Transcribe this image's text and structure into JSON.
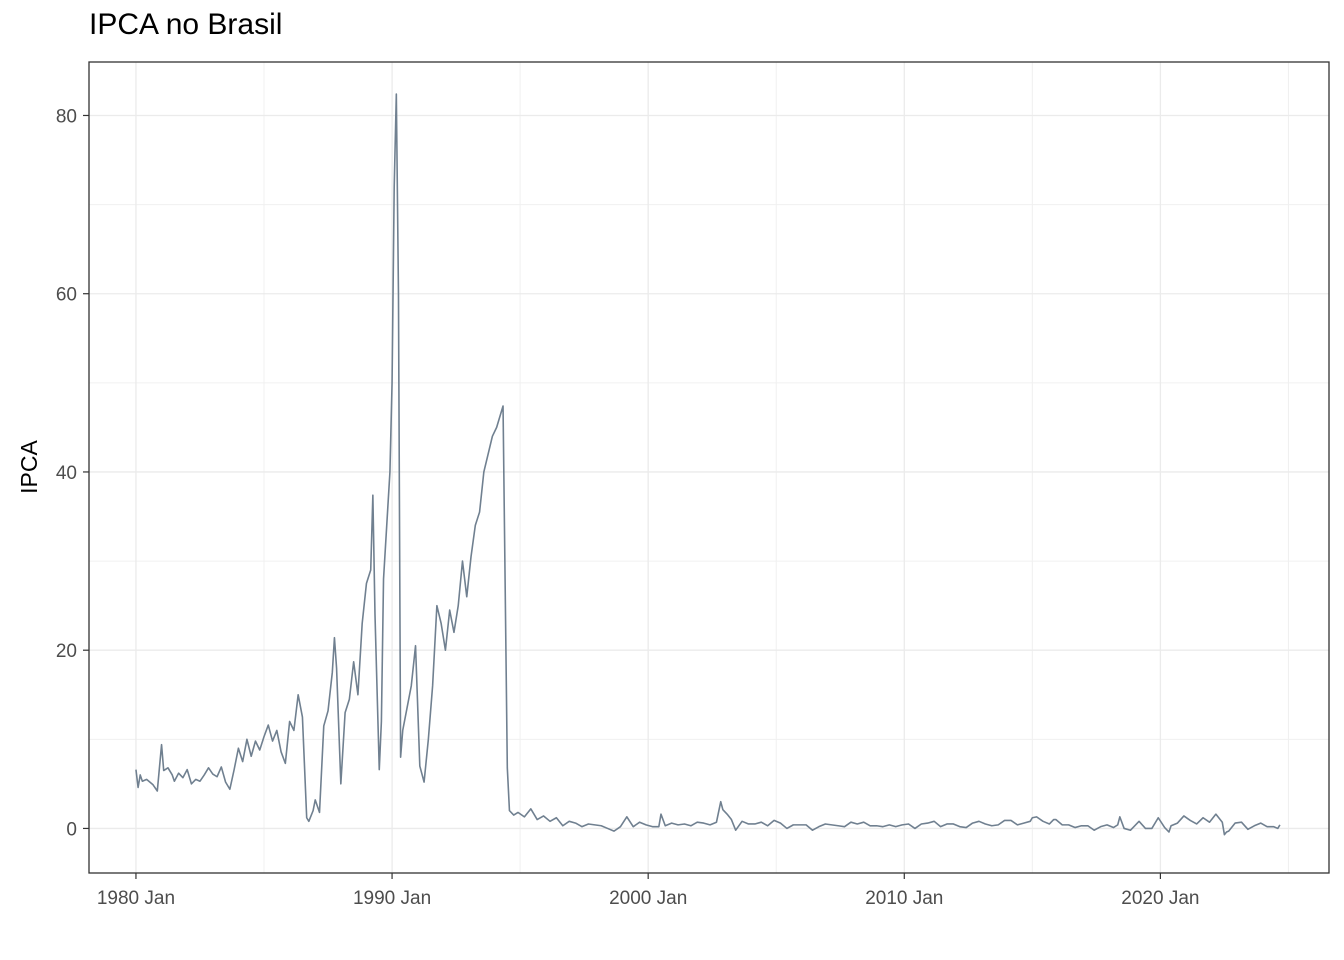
{
  "chart_data": {
    "type": "line",
    "title": "IPCA no Brasil",
    "xlabel": "",
    "ylabel": "IPCA",
    "x_ticks": [
      {
        "year": 1980,
        "label": "1980 Jan"
      },
      {
        "year": 1990,
        "label": "1990 Jan"
      },
      {
        "year": 2000,
        "label": "2000 Jan"
      },
      {
        "year": 2010,
        "label": "2010 Jan"
      },
      {
        "year": 2020,
        "label": "2020 Jan"
      }
    ],
    "y_ticks": [
      0,
      20,
      40,
      60,
      80
    ],
    "xlim": [
      "1978-03",
      "2026-08"
    ],
    "ylim": [
      -5,
      86
    ],
    "grid": true,
    "line_color": "#708090",
    "series": [
      {
        "points": [
          [
            "1980-01",
            6.6
          ],
          [
            "1980-02",
            4.6
          ],
          [
            "1980-03",
            6.0
          ],
          [
            "1980-04",
            5.3
          ],
          [
            "1980-06",
            5.5
          ],
          [
            "1980-09",
            4.9
          ],
          [
            "1980-11",
            4.2
          ],
          [
            "1980-12",
            6.8
          ],
          [
            "1981-01",
            9.4
          ],
          [
            "1981-02",
            6.5
          ],
          [
            "1981-04",
            6.8
          ],
          [
            "1981-06",
            6.0
          ],
          [
            "1981-07",
            5.3
          ],
          [
            "1981-09",
            6.2
          ],
          [
            "1981-11",
            5.7
          ],
          [
            "1982-01",
            6.6
          ],
          [
            "1982-03",
            5.0
          ],
          [
            "1982-05",
            5.5
          ],
          [
            "1982-07",
            5.3
          ],
          [
            "1982-09",
            6.0
          ],
          [
            "1982-11",
            6.8
          ],
          [
            "1983-01",
            6.1
          ],
          [
            "1983-03",
            5.8
          ],
          [
            "1983-05",
            6.9
          ],
          [
            "1983-07",
            5.2
          ],
          [
            "1983-09",
            4.4
          ],
          [
            "1983-11",
            6.6
          ],
          [
            "1984-01",
            9.0
          ],
          [
            "1984-03",
            7.5
          ],
          [
            "1984-05",
            10.0
          ],
          [
            "1984-07",
            8.1
          ],
          [
            "1984-09",
            9.8
          ],
          [
            "1984-11",
            8.8
          ],
          [
            "1985-01",
            10.3
          ],
          [
            "1985-03",
            11.6
          ],
          [
            "1985-05",
            9.8
          ],
          [
            "1985-07",
            11.0
          ],
          [
            "1985-09",
            8.6
          ],
          [
            "1985-11",
            7.3
          ],
          [
            "1986-01",
            12.0
          ],
          [
            "1986-03",
            11.0
          ],
          [
            "1986-05",
            15.0
          ],
          [
            "1986-07",
            12.5
          ],
          [
            "1986-09",
            1.2
          ],
          [
            "1986-10",
            0.8
          ],
          [
            "1986-12",
            2.0
          ],
          [
            "1987-01",
            3.2
          ],
          [
            "1987-03",
            1.8
          ],
          [
            "1987-05",
            11.5
          ],
          [
            "1987-07",
            13.2
          ],
          [
            "1987-09",
            17.5
          ],
          [
            "1987-10",
            21.4
          ],
          [
            "1987-11",
            18.0
          ],
          [
            "1988-01",
            5.0
          ],
          [
            "1988-03",
            13.0
          ],
          [
            "1988-05",
            14.5
          ],
          [
            "1988-07",
            18.7
          ],
          [
            "1988-09",
            15.0
          ],
          [
            "1988-11",
            23.0
          ],
          [
            "1989-01",
            27.5
          ],
          [
            "1989-03",
            29.0
          ],
          [
            "1989-04",
            37.4
          ],
          [
            "1989-05",
            24.0
          ],
          [
            "1989-07",
            6.6
          ],
          [
            "1989-08",
            12.0
          ],
          [
            "1989-09",
            28.0
          ],
          [
            "1989-11",
            36.0
          ],
          [
            "1989-12",
            40.0
          ],
          [
            "1990-01",
            50.0
          ],
          [
            "1990-02",
            72.0
          ],
          [
            "1990-03",
            82.4
          ],
          [
            "1990-04",
            60.0
          ],
          [
            "1990-05",
            8.0
          ],
          [
            "1990-06",
            11.0
          ],
          [
            "1990-08",
            13.5
          ],
          [
            "1990-10",
            16.0
          ],
          [
            "1990-12",
            20.5
          ],
          [
            "1991-02",
            7.0
          ],
          [
            "1991-04",
            5.2
          ],
          [
            "1991-06",
            10.0
          ],
          [
            "1991-08",
            16.0
          ],
          [
            "1991-10",
            25.0
          ],
          [
            "1991-12",
            23.0
          ],
          [
            "1992-02",
            20.0
          ],
          [
            "1992-04",
            24.5
          ],
          [
            "1992-06",
            22.0
          ],
          [
            "1992-08",
            25.0
          ],
          [
            "1992-10",
            30.0
          ],
          [
            "1992-12",
            26.0
          ],
          [
            "1993-02",
            30.5
          ],
          [
            "1993-04",
            34.0
          ],
          [
            "1993-06",
            35.5
          ],
          [
            "1993-08",
            40.0
          ],
          [
            "1993-10",
            42.0
          ],
          [
            "1993-12",
            44.0
          ],
          [
            "1994-02",
            45.0
          ],
          [
            "1994-05",
            47.4
          ],
          [
            "1994-07",
            6.8
          ],
          [
            "1994-08",
            2.0
          ],
          [
            "1994-10",
            1.5
          ],
          [
            "1994-12",
            1.8
          ],
          [
            "1995-03",
            1.3
          ],
          [
            "1995-06",
            2.2
          ],
          [
            "1995-09",
            1.0
          ],
          [
            "1995-12",
            1.4
          ],
          [
            "1996-03",
            0.8
          ],
          [
            "1996-06",
            1.2
          ],
          [
            "1996-09",
            0.3
          ],
          [
            "1996-12",
            0.8
          ],
          [
            "1997-03",
            0.6
          ],
          [
            "1997-06",
            0.2
          ],
          [
            "1997-09",
            0.5
          ],
          [
            "1997-12",
            0.4
          ],
          [
            "1998-03",
            0.3
          ],
          [
            "1998-06",
            0.0
          ],
          [
            "1998-09",
            -0.3
          ],
          [
            "1998-12",
            0.2
          ],
          [
            "1999-03",
            1.3
          ],
          [
            "1999-06",
            0.2
          ],
          [
            "1999-09",
            0.7
          ],
          [
            "1999-12",
            0.4
          ],
          [
            "2000-03",
            0.2
          ],
          [
            "2000-06",
            0.2
          ],
          [
            "2000-07",
            1.6
          ],
          [
            "2000-09",
            0.3
          ],
          [
            "2000-12",
            0.6
          ],
          [
            "2001-03",
            0.4
          ],
          [
            "2001-06",
            0.5
          ],
          [
            "2001-09",
            0.3
          ],
          [
            "2001-12",
            0.7
          ],
          [
            "2002-03",
            0.6
          ],
          [
            "2002-06",
            0.4
          ],
          [
            "2002-09",
            0.7
          ],
          [
            "2002-11",
            3.0
          ],
          [
            "2002-12",
            2.1
          ],
          [
            "2003-02",
            1.6
          ],
          [
            "2003-04",
            1.0
          ],
          [
            "2003-06",
            -0.2
          ],
          [
            "2003-09",
            0.8
          ],
          [
            "2003-12",
            0.5
          ],
          [
            "2004-03",
            0.5
          ],
          [
            "2004-06",
            0.7
          ],
          [
            "2004-09",
            0.3
          ],
          [
            "2004-12",
            0.9
          ],
          [
            "2005-03",
            0.6
          ],
          [
            "2005-06",
            0.0
          ],
          [
            "2005-09",
            0.4
          ],
          [
            "2005-12",
            0.4
          ],
          [
            "2006-03",
            0.4
          ],
          [
            "2006-06",
            -0.2
          ],
          [
            "2006-09",
            0.2
          ],
          [
            "2006-12",
            0.5
          ],
          [
            "2007-03",
            0.4
          ],
          [
            "2007-06",
            0.3
          ],
          [
            "2007-09",
            0.2
          ],
          [
            "2007-12",
            0.7
          ],
          [
            "2008-03",
            0.5
          ],
          [
            "2008-06",
            0.7
          ],
          [
            "2008-09",
            0.3
          ],
          [
            "2008-12",
            0.3
          ],
          [
            "2009-03",
            0.2
          ],
          [
            "2009-06",
            0.4
          ],
          [
            "2009-09",
            0.2
          ],
          [
            "2009-12",
            0.4
          ],
          [
            "2010-03",
            0.5
          ],
          [
            "2010-06",
            0.0
          ],
          [
            "2010-09",
            0.5
          ],
          [
            "2010-12",
            0.6
          ],
          [
            "2011-03",
            0.8
          ],
          [
            "2011-06",
            0.2
          ],
          [
            "2011-09",
            0.5
          ],
          [
            "2011-12",
            0.5
          ],
          [
            "2012-03",
            0.2
          ],
          [
            "2012-06",
            0.1
          ],
          [
            "2012-09",
            0.6
          ],
          [
            "2012-12",
            0.8
          ],
          [
            "2013-03",
            0.5
          ],
          [
            "2013-06",
            0.3
          ],
          [
            "2013-09",
            0.4
          ],
          [
            "2013-12",
            0.9
          ],
          [
            "2014-03",
            0.9
          ],
          [
            "2014-06",
            0.4
          ],
          [
            "2014-09",
            0.6
          ],
          [
            "2014-12",
            0.8
          ],
          [
            "2015-01",
            1.2
          ],
          [
            "2015-03",
            1.3
          ],
          [
            "2015-06",
            0.8
          ],
          [
            "2015-09",
            0.5
          ],
          [
            "2015-11",
            1.0
          ],
          [
            "2015-12",
            1.0
          ],
          [
            "2016-03",
            0.4
          ],
          [
            "2016-06",
            0.4
          ],
          [
            "2016-09",
            0.1
          ],
          [
            "2016-12",
            0.3
          ],
          [
            "2017-03",
            0.3
          ],
          [
            "2017-06",
            -0.2
          ],
          [
            "2017-09",
            0.2
          ],
          [
            "2017-12",
            0.4
          ],
          [
            "2018-03",
            0.1
          ],
          [
            "2018-05",
            0.4
          ],
          [
            "2018-06",
            1.3
          ],
          [
            "2018-08",
            0.0
          ],
          [
            "2018-11",
            -0.2
          ],
          [
            "2019-03",
            0.8
          ],
          [
            "2019-06",
            0.0
          ],
          [
            "2019-09",
            0.0
          ],
          [
            "2019-12",
            1.2
          ],
          [
            "2020-03",
            0.1
          ],
          [
            "2020-05",
            -0.4
          ],
          [
            "2020-06",
            0.3
          ],
          [
            "2020-09",
            0.6
          ],
          [
            "2020-12",
            1.4
          ],
          [
            "2021-03",
            0.9
          ],
          [
            "2021-06",
            0.5
          ],
          [
            "2021-09",
            1.2
          ],
          [
            "2021-12",
            0.7
          ],
          [
            "2022-03",
            1.6
          ],
          [
            "2022-06",
            0.7
          ],
          [
            "2022-07",
            -0.7
          ],
          [
            "2022-08",
            -0.4
          ],
          [
            "2022-09",
            -0.3
          ],
          [
            "2022-12",
            0.6
          ],
          [
            "2023-03",
            0.7
          ],
          [
            "2023-06",
            -0.1
          ],
          [
            "2023-09",
            0.3
          ],
          [
            "2023-12",
            0.6
          ],
          [
            "2024-03",
            0.2
          ],
          [
            "2024-06",
            0.2
          ],
          [
            "2024-08",
            0.0
          ],
          [
            "2024-09",
            0.4
          ]
        ]
      }
    ]
  }
}
